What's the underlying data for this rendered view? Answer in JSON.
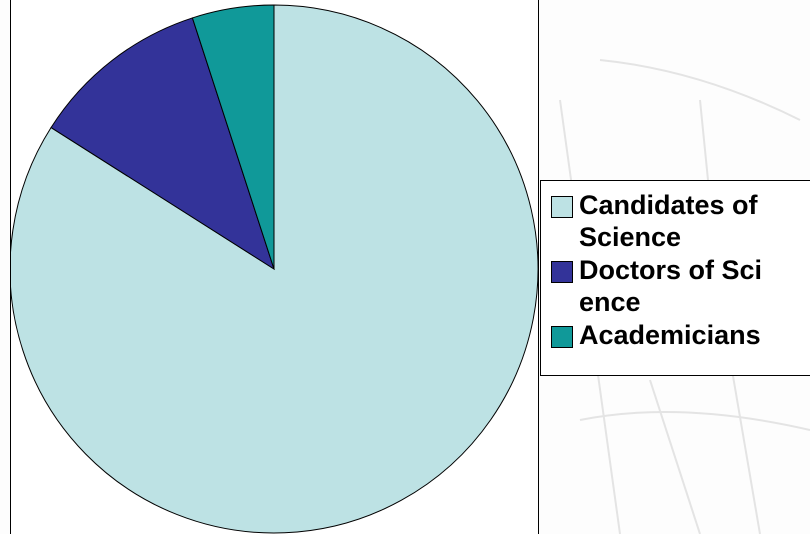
{
  "chart_data": {
    "type": "pie",
    "categories": [
      "Candidates of Science",
      "Doctors of Science",
      "Academicians"
    ],
    "values": [
      84,
      11,
      5
    ],
    "colors": [
      "#bde2e4",
      "#333399",
      "#109999"
    ]
  }
}
